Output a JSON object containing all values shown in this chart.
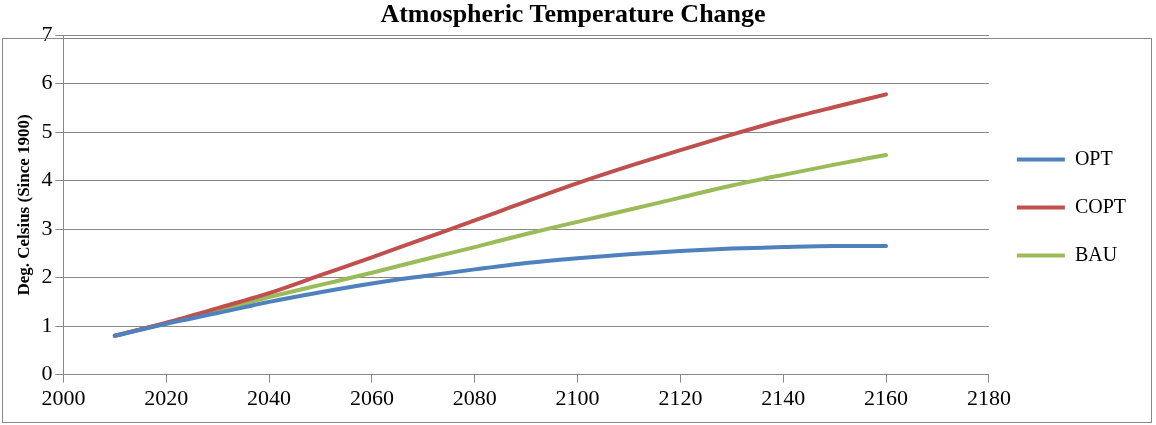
{
  "chart_data": {
    "type": "line",
    "title": "Atmospheric Temperature Change",
    "ylabel": "Deg. Celsius (Since 1900)",
    "x": [
      2010,
      2020,
      2030,
      2040,
      2050,
      2060,
      2070,
      2080,
      2090,
      2100,
      2110,
      2120,
      2130,
      2140,
      2150,
      2160
    ],
    "series": [
      {
        "name": "OPT",
        "color": "#4f81bd",
        "values": [
          0.8,
          1.05,
          1.27,
          1.5,
          1.7,
          1.88,
          2.03,
          2.17,
          2.3,
          2.4,
          2.48,
          2.55,
          2.6,
          2.63,
          2.65,
          2.65
        ]
      },
      {
        "name": "COPT",
        "color": "#c0504d",
        "values": [
          0.8,
          1.07,
          1.37,
          1.68,
          2.05,
          2.42,
          2.8,
          3.18,
          3.57,
          3.95,
          4.3,
          4.63,
          4.95,
          5.25,
          5.52,
          5.78
        ]
      },
      {
        "name": "BAU",
        "color": "#9bbb59",
        "values": [
          0.8,
          1.06,
          1.33,
          1.6,
          1.85,
          2.1,
          2.37,
          2.63,
          2.9,
          3.15,
          3.4,
          3.65,
          3.9,
          4.12,
          4.33,
          4.53
        ]
      }
    ],
    "xlim": [
      2000,
      2180
    ],
    "xticks": [
      2000,
      2020,
      2040,
      2060,
      2080,
      2100,
      2120,
      2140,
      2160,
      2180
    ],
    "ylim": [
      0,
      7
    ],
    "yticks": [
      0,
      1,
      2,
      3,
      4,
      5,
      6,
      7
    ],
    "grid": "y",
    "legend": "right",
    "marker": "none",
    "line_style": "solid"
  }
}
